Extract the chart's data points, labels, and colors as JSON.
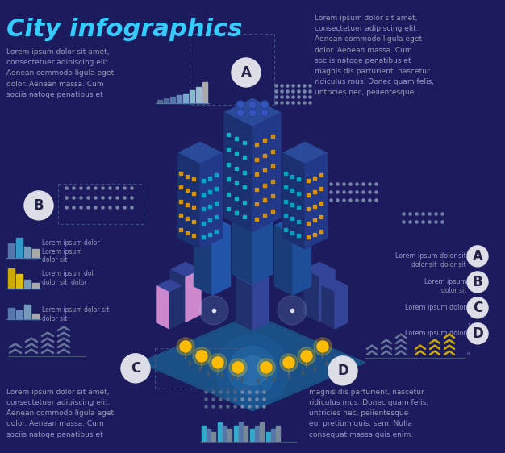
{
  "background_color": "#1b1b5e",
  "title": "City infographics",
  "title_color": "#33ccff",
  "title_fontsize": 22,
  "text_color": "#9999bb",
  "white": "#ffffff",
  "text_top_left": "Lorem ipsum dolor sit amet,\nconsectetuer adipiscing elit.\nAenean commodo ligula eget\ndolor. Aenean massa. Cum\nsociis natoqe penatibus et",
  "text_top_right": "Lorem ipsum dolor sit amet,\nconsectetuer adipiscing elit.\nAenean commodo ligula eget\ndolor. Aenean massa. Cum\nsociis natoqe penatibus et\nmagnis dis parturient, nascetur\nridiculus mus. Donec quam felis,\nuntricies nec, peiientesque",
  "text_bottom_left": "Lorem ipsum dolor sit amet,\nconsectetuer adipiscing elit.\nAenean commodo ligula eget\ndolor. Aenean massa. Cum\nsociis natoqe penatibus et",
  "text_bottom_right": "magnis dis parturient, nascetur\nridiculus mus. Donec quam felis,\nuntricies nec, peiientesque\neu, pretium quis, sem. Nulla\nconsequat massa quis enim.",
  "right_label_texts": [
    [
      "Lorem ipsum dolor sit",
      "dolor sit  dolor sit"
    ],
    [
      "Lorem ipsum",
      "dolor sit"
    ],
    [
      "Lorem ipsum dolor",
      ""
    ],
    [
      "Lorem ipsum dolor",
      ""
    ]
  ],
  "bar_top_heights": [
    1,
    1.5,
    2,
    2.5,
    3,
    4,
    5,
    6.5
  ],
  "bar_top_colors": [
    "#556688",
    "#556699",
    "#5577aa",
    "#6688bb",
    "#77aacc",
    "#88bbcc",
    "#99bbcc",
    "#aaaaaa"
  ],
  "circle_bg": "#dddde8",
  "circle_letter_color": "#222244",
  "dotted_color": "#445588",
  "people_color": "#556688",
  "people_color2": "#7788aa"
}
